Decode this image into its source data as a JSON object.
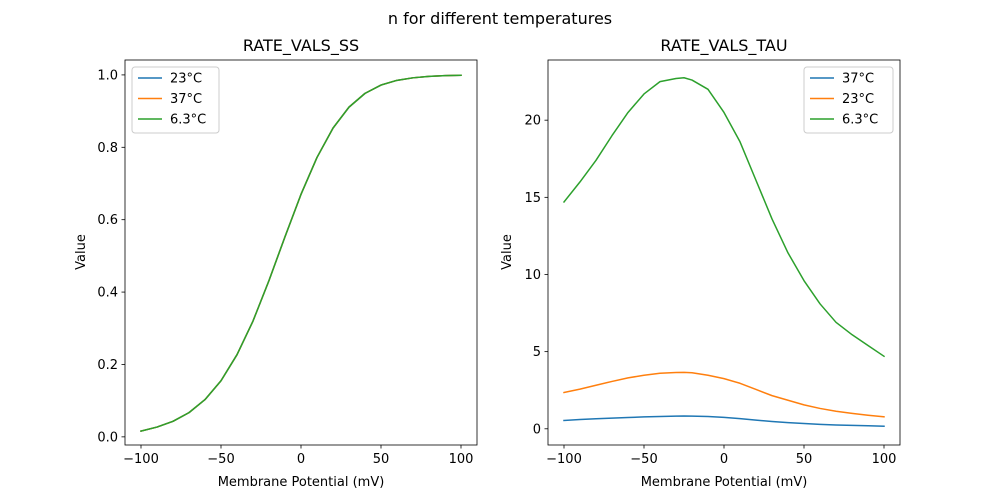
{
  "suptitle": "n for different temperatures",
  "chart_data": [
    {
      "type": "line",
      "title": "RATE_VALS_SS",
      "xlabel": "Membrane Potential (mV)",
      "ylabel": "Value",
      "xlim": [
        -110,
        110
      ],
      "ylim": [
        -0.0225,
        1.0412
      ],
      "xticks": [
        -100,
        -50,
        0,
        50,
        100
      ],
      "xtick_labels": [
        "−100",
        "−50",
        "0",
        "50",
        "100"
      ],
      "yticks": [
        0.0,
        0.2,
        0.4,
        0.6,
        0.8,
        1.0
      ],
      "ytick_labels": [
        "0.0",
        "0.2",
        "0.4",
        "0.6",
        "0.8",
        "1.0"
      ],
      "grid": false,
      "legend": "upper left",
      "x": [
        -100,
        -90,
        -80,
        -70,
        -60,
        -50,
        -40,
        -30,
        -20,
        -10,
        0,
        10,
        20,
        30,
        40,
        50,
        60,
        70,
        80,
        90,
        100
      ],
      "series": [
        {
          "name": "23°C",
          "color": "#1f77b4",
          "values": [
            0.016,
            0.027,
            0.043,
            0.067,
            0.103,
            0.155,
            0.227,
            0.32,
            0.432,
            0.553,
            0.67,
            0.772,
            0.853,
            0.911,
            0.949,
            0.972,
            0.985,
            0.992,
            0.996,
            0.998,
            0.999
          ]
        },
        {
          "name": "37°C",
          "color": "#ff7f0e",
          "values": [
            0.016,
            0.027,
            0.043,
            0.067,
            0.103,
            0.155,
            0.227,
            0.32,
            0.432,
            0.553,
            0.67,
            0.772,
            0.853,
            0.911,
            0.949,
            0.972,
            0.985,
            0.992,
            0.996,
            0.998,
            0.999
          ]
        },
        {
          "name": "6.3°C",
          "color": "#2ca02c",
          "values": [
            0.016,
            0.027,
            0.043,
            0.067,
            0.103,
            0.155,
            0.227,
            0.32,
            0.432,
            0.553,
            0.67,
            0.772,
            0.853,
            0.911,
            0.949,
            0.972,
            0.985,
            0.992,
            0.996,
            0.998,
            0.999
          ]
        }
      ]
    },
    {
      "type": "line",
      "title": "RATE_VALS_TAU",
      "xlabel": "Membrane Potential (mV)",
      "ylabel": "Value",
      "xlim": [
        -110,
        110
      ],
      "ylim": [
        -1.05,
        23.9
      ],
      "xticks": [
        -100,
        -50,
        0,
        50,
        100
      ],
      "xtick_labels": [
        "−100",
        "−50",
        "0",
        "50",
        "100"
      ],
      "yticks": [
        0,
        5,
        10,
        15,
        20
      ],
      "ytick_labels": [
        "0",
        "5",
        "10",
        "15",
        "20"
      ],
      "grid": false,
      "legend": "upper right",
      "x": [
        -100,
        -90,
        -80,
        -70,
        -60,
        -50,
        -40,
        -30,
        -25,
        -20,
        -10,
        0,
        10,
        20,
        30,
        40,
        50,
        60,
        70,
        80,
        90,
        100
      ],
      "series": [
        {
          "name": "37°C",
          "color": "#1f77b4",
          "values": [
            0.54,
            0.6,
            0.65,
            0.69,
            0.73,
            0.77,
            0.8,
            0.82,
            0.83,
            0.82,
            0.8,
            0.74,
            0.66,
            0.56,
            0.47,
            0.4,
            0.34,
            0.29,
            0.25,
            0.22,
            0.2,
            0.17
          ]
        },
        {
          "name": "23°C",
          "color": "#ff7f0e",
          "values": [
            2.35,
            2.57,
            2.82,
            3.07,
            3.3,
            3.47,
            3.6,
            3.65,
            3.66,
            3.63,
            3.47,
            3.25,
            2.95,
            2.55,
            2.15,
            1.85,
            1.55,
            1.32,
            1.14,
            1.0,
            0.88,
            0.78
          ]
        },
        {
          "name": "6.3°C",
          "color": "#2ca02c",
          "values": [
            14.7,
            16.0,
            17.4,
            19.0,
            20.5,
            21.7,
            22.5,
            22.7,
            22.75,
            22.6,
            22.0,
            20.5,
            18.6,
            16.1,
            13.6,
            11.4,
            9.6,
            8.1,
            6.9,
            6.1,
            5.4,
            4.7
          ]
        }
      ]
    }
  ]
}
